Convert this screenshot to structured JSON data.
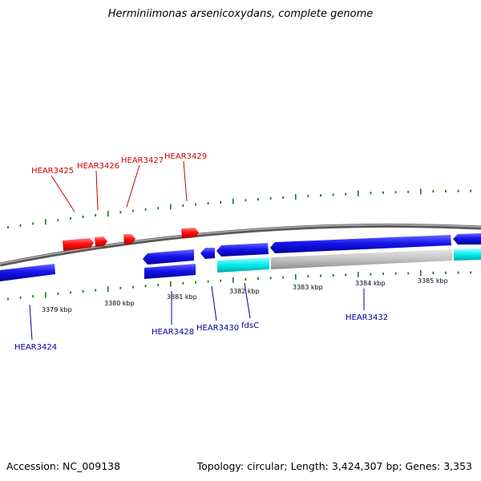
{
  "title": "Herminiimonas arsenicoxydans, complete genome",
  "footer": {
    "accession": "Accession: NC_009138",
    "topology": "Topology: circular; Length: 3,424,307 bp; Genes: 3,353"
  },
  "colors": {
    "plus_strand_gene": "#ff0000",
    "minus_strand_gene": "#0000dd",
    "rna_or_feature": "#00e0e0",
    "pseudo_gray": "#b8b8b8",
    "backbone": "#777777",
    "tick": "#1a7a1a",
    "plus_label": "#cc0000",
    "minus_label": "#000099"
  },
  "scale": {
    "labels": [
      "3379 kbp",
      "3380 kbp",
      "3381 kbp",
      "3382 kbp",
      "3383 kbp",
      "3384 kbp",
      "3385 kbp"
    ]
  },
  "genes": {
    "plus_labels": [
      "HEAR3425",
      "HEAR3426",
      "HEAR3427",
      "HEAR3429"
    ],
    "minus_labels": [
      "HEAR3424",
      "HEAR3428",
      "HEAR3430",
      "fdsC",
      "HEAR3432"
    ]
  }
}
